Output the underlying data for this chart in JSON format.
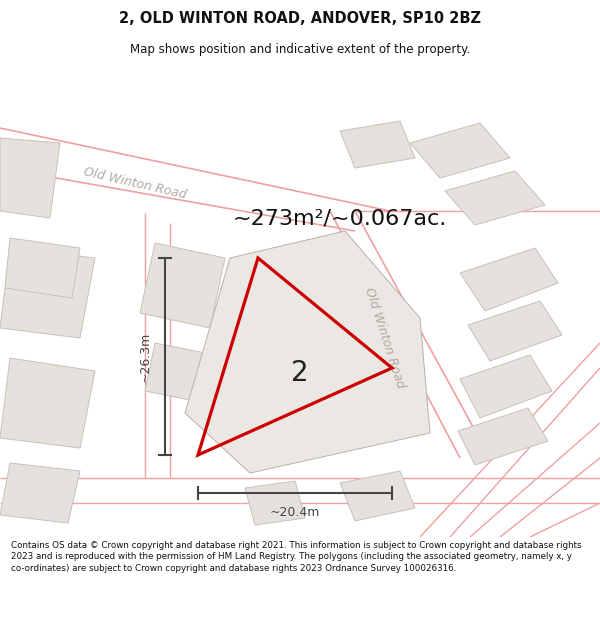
{
  "title": "2, OLD WINTON ROAD, ANDOVER, SP10 2BZ",
  "subtitle": "Map shows position and indicative extent of the property.",
  "area_label": "~273m²/~0.067ac.",
  "dim_vertical": "~26.3m",
  "dim_horizontal": "~20.4m",
  "property_number": "2",
  "road_label_ul": "Old Winton Road",
  "road_label_diag": "Old Winton Road",
  "footer": "Contains OS data © Crown copyright and database right 2021. This information is subject to Crown copyright and database rights 2023 and is reproduced with the permission of HM Land Registry. The polygons (including the associated geometry, namely x, y co-ordinates) are subject to Crown copyright and database rights 2023 Ordnance Survey 100026316.",
  "bg_color": "#f2f0ed",
  "building_fill": "#e5e2dd",
  "building_stroke": "#c8c0b8",
  "pink_line_color": "#f0a0a0",
  "red_polygon_color": "#cc0000",
  "dim_line_color": "#444444",
  "title_color": "#111111",
  "footer_color": "#111111",
  "area_color": "#111111",
  "road_text_color": "#b0aaa0",
  "white": "#ffffff",
  "title_region_color": "#ffffff",
  "footer_region_color": "#ffffff"
}
